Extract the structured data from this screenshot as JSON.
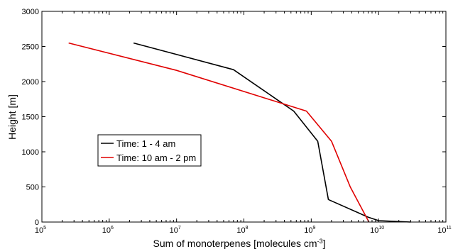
{
  "chart_data": {
    "type": "line",
    "xlabel": "Sum of monoterpenes [molecules cm",
    "xlabel_unit_exponent": "-3",
    "xlabel_suffix": "]",
    "ylabel": "Height [m]",
    "x_scale": "log",
    "xlim": [
      100000,
      100000000000
    ],
    "ylim": [
      0,
      3000
    ],
    "x_ticks": [
      {
        "value": 100000,
        "base": "10",
        "exp": "5"
      },
      {
        "value": 1000000,
        "base": "10",
        "exp": "6"
      },
      {
        "value": 10000000,
        "base": "10",
        "exp": "7"
      },
      {
        "value": 100000000,
        "base": "10",
        "exp": "8"
      },
      {
        "value": 1000000000,
        "base": "10",
        "exp": "9"
      },
      {
        "value": 10000000000,
        "base": "10",
        "exp": "10"
      },
      {
        "value": 100000000000,
        "base": "10",
        "exp": "11"
      }
    ],
    "y_ticks": [
      0,
      500,
      1000,
      1500,
      2000,
      2500,
      3000
    ],
    "grid": false,
    "legend_position": "center-left",
    "series": [
      {
        "name": "Time: 1 - 4 am",
        "color": "#000000",
        "points": [
          [
            2300000,
            2550
          ],
          [
            70000000,
            2170
          ],
          [
            550000000,
            1580
          ],
          [
            1250000000,
            1150
          ],
          [
            1800000000,
            320
          ],
          [
            7000000000,
            70
          ],
          [
            10000000000,
            20
          ],
          [
            30000000000,
            0
          ]
        ]
      },
      {
        "name": "Time: 10 am - 2 pm",
        "color": "#e00000",
        "points": [
          [
            250000,
            2550
          ],
          [
            10000000,
            2160
          ],
          [
            850000000,
            1580
          ],
          [
            2000000000,
            1150
          ],
          [
            3800000000,
            500
          ],
          [
            7200000000,
            0
          ]
        ]
      }
    ]
  }
}
